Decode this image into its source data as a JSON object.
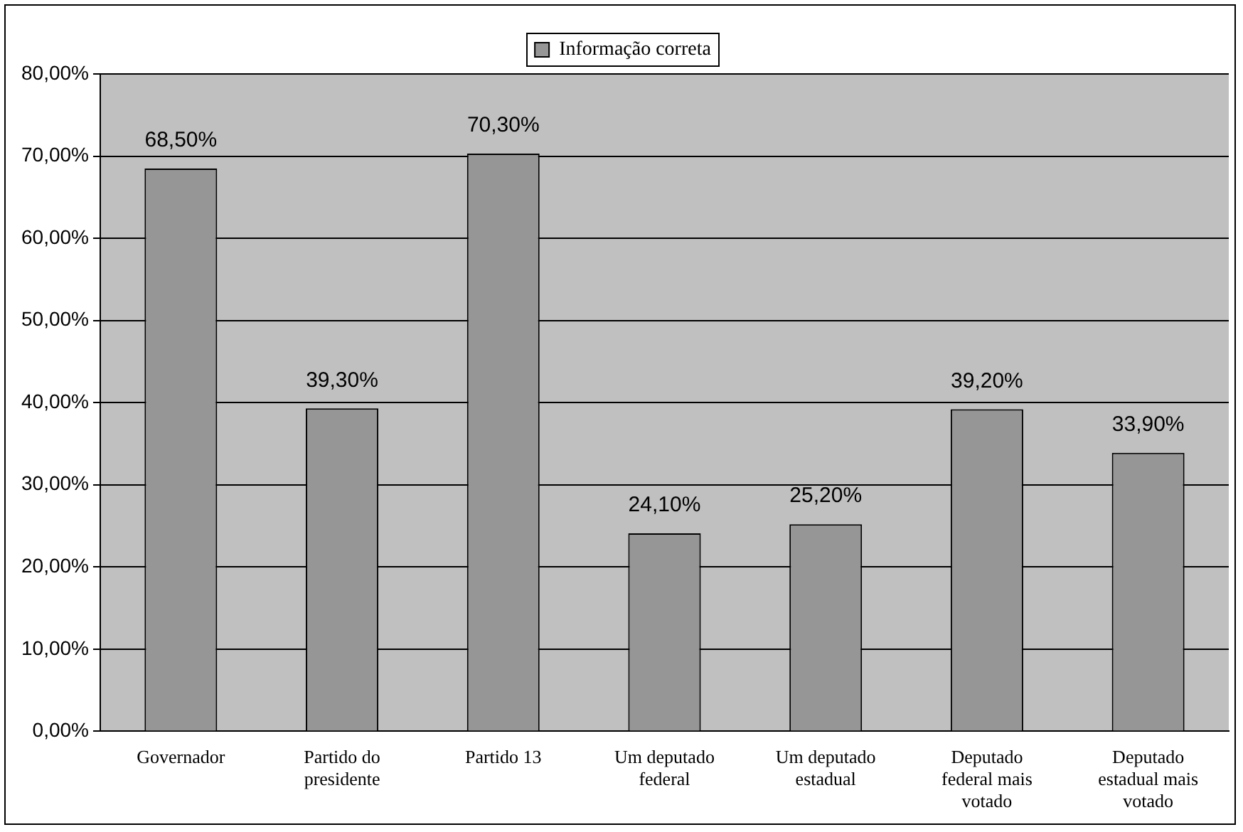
{
  "chart_data": {
    "type": "bar",
    "categories": [
      "Governador",
      "Partido do presidente",
      "Partido 13",
      "Um deputado federal",
      "Um deputado estadual",
      "Deputado federal mais votado",
      "Deputado estadual mais votado"
    ],
    "series": [
      {
        "name": "Informação correta",
        "color": "#969696",
        "values": [
          68.5,
          39.3,
          70.3,
          24.1,
          25.2,
          39.2,
          33.9
        ],
        "value_labels": [
          "68,50%",
          "39,30%",
          "70,30%",
          "24,10%",
          "25,20%",
          "39,20%",
          "33,90%"
        ]
      }
    ],
    "ylim": [
      0,
      80
    ],
    "yticks": [
      {
        "value": 0,
        "label": "0,00%"
      },
      {
        "value": 10,
        "label": "10,00%"
      },
      {
        "value": 20,
        "label": "20,00%"
      },
      {
        "value": 30,
        "label": "30,00%"
      },
      {
        "value": 40,
        "label": "40,00%"
      },
      {
        "value": 50,
        "label": "50,00%"
      },
      {
        "value": 60,
        "label": "60,00%"
      },
      {
        "value": 70,
        "label": "70,00%"
      },
      {
        "value": 80,
        "label": "80,00%"
      }
    ],
    "grid": "y",
    "legend": "top"
  }
}
